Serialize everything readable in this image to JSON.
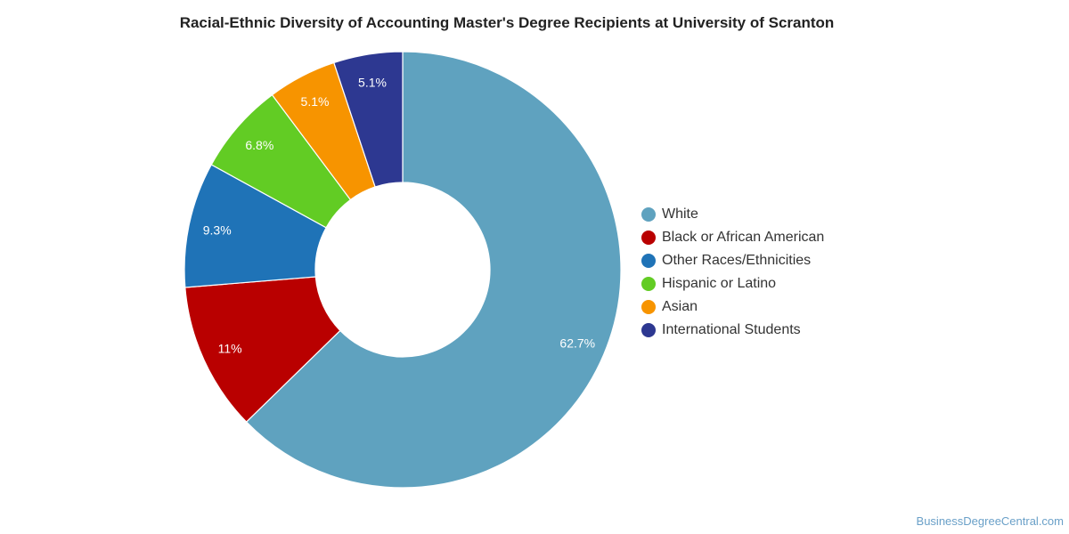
{
  "chart_data": {
    "type": "pie",
    "variant": "donut",
    "title": "Racial-Ethnic Diversity of Accounting Master's Degree Recipients at University of Scranton",
    "legend_position": "right",
    "slices": [
      {
        "label": "White",
        "value": 62.7,
        "value_label": "62.7%",
        "color": "#5fa2bf"
      },
      {
        "label": "Black or African American",
        "value": 11,
        "value_label": "11%",
        "color": "#b90000"
      },
      {
        "label": "Other Races/Ethnicities",
        "value": 9.3,
        "value_label": "9.3%",
        "color": "#1f73b7"
      },
      {
        "label": "Hispanic or Latino",
        "value": 6.8,
        "value_label": "6.8%",
        "color": "#62cc24"
      },
      {
        "label": "Asian",
        "value": 5.1,
        "value_label": "5.1%",
        "color": "#f79400"
      },
      {
        "label": "International Students",
        "value": 5.1,
        "value_label": "5.1%",
        "color": "#2d3891"
      }
    ]
  },
  "footer": {
    "credit": "BusinessDegreeCentral.com"
  }
}
